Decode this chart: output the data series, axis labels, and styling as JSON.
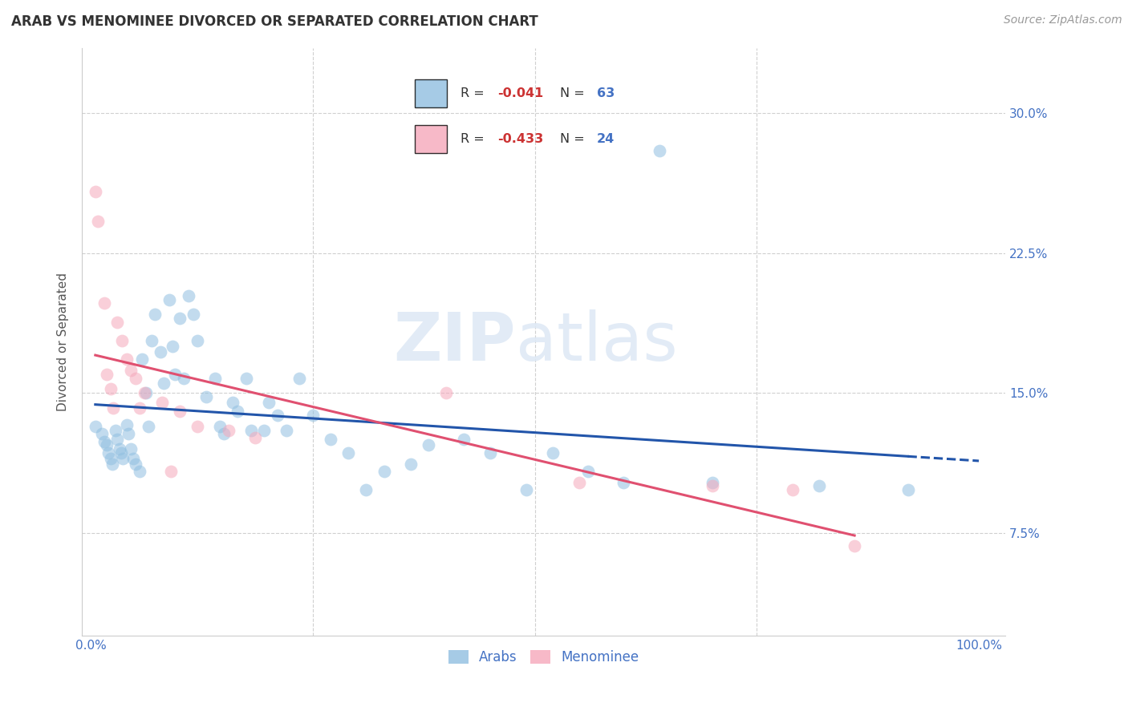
{
  "title": "ARAB VS MENOMINEE DIVORCED OR SEPARATED CORRELATION CHART",
  "source": "Source: ZipAtlas.com",
  "ylabel": "Divorced or Separated",
  "xlim": [
    -0.01,
    1.03
  ],
  "ylim": [
    0.02,
    0.335
  ],
  "ytick_positions": [
    0.075,
    0.15,
    0.225,
    0.3
  ],
  "ytick_labels": [
    "7.5%",
    "15.0%",
    "22.5%",
    "30.0%"
  ],
  "arab_R": -0.041,
  "arab_N": 63,
  "menominee_R": -0.433,
  "menominee_N": 24,
  "arab_color": "#90bfe0",
  "menominee_color": "#f5a8bb",
  "arab_line_color": "#2255aa",
  "menominee_line_color": "#e05070",
  "legend_label_arab": "Arabs",
  "legend_label_menominee": "Menominee",
  "background_color": "#ffffff",
  "grid_color": "#d0d0d0",
  "arab_x": [
    0.005,
    0.012,
    0.015,
    0.018,
    0.02,
    0.022,
    0.024,
    0.028,
    0.03,
    0.032,
    0.034,
    0.036,
    0.04,
    0.042,
    0.045,
    0.048,
    0.05,
    0.055,
    0.058,
    0.062,
    0.065,
    0.068,
    0.072,
    0.078,
    0.082,
    0.088,
    0.092,
    0.095,
    0.1,
    0.105,
    0.11,
    0.115,
    0.12,
    0.13,
    0.14,
    0.145,
    0.15,
    0.16,
    0.165,
    0.175,
    0.18,
    0.195,
    0.2,
    0.21,
    0.22,
    0.235,
    0.25,
    0.27,
    0.29,
    0.31,
    0.33,
    0.36,
    0.38,
    0.42,
    0.45,
    0.49,
    0.52,
    0.56,
    0.6,
    0.64,
    0.7,
    0.82,
    0.92
  ],
  "arab_y": [
    0.132,
    0.128,
    0.124,
    0.122,
    0.118,
    0.115,
    0.112,
    0.13,
    0.125,
    0.12,
    0.118,
    0.115,
    0.133,
    0.128,
    0.12,
    0.115,
    0.112,
    0.108,
    0.168,
    0.15,
    0.132,
    0.178,
    0.192,
    0.172,
    0.155,
    0.2,
    0.175,
    0.16,
    0.19,
    0.158,
    0.202,
    0.192,
    0.178,
    0.148,
    0.158,
    0.132,
    0.128,
    0.145,
    0.14,
    0.158,
    0.13,
    0.13,
    0.145,
    0.138,
    0.13,
    0.158,
    0.138,
    0.125,
    0.118,
    0.098,
    0.108,
    0.112,
    0.122,
    0.125,
    0.118,
    0.098,
    0.118,
    0.108,
    0.102,
    0.28,
    0.102,
    0.1,
    0.098
  ],
  "menominee_x": [
    0.005,
    0.008,
    0.015,
    0.018,
    0.022,
    0.025,
    0.03,
    0.035,
    0.04,
    0.045,
    0.05,
    0.055,
    0.06,
    0.08,
    0.09,
    0.1,
    0.12,
    0.155,
    0.185,
    0.4,
    0.55,
    0.7,
    0.79,
    0.86
  ],
  "menominee_y": [
    0.258,
    0.242,
    0.198,
    0.16,
    0.152,
    0.142,
    0.188,
    0.178,
    0.168,
    0.162,
    0.158,
    0.142,
    0.15,
    0.145,
    0.108,
    0.14,
    0.132,
    0.13,
    0.126,
    0.15,
    0.102,
    0.1,
    0.098,
    0.068
  ],
  "title_fontsize": 12,
  "axis_label_fontsize": 11,
  "tick_fontsize": 11,
  "legend_fontsize": 12,
  "source_fontsize": 10,
  "dot_size": 130,
  "dot_alpha": 0.55,
  "line_width": 2.2
}
